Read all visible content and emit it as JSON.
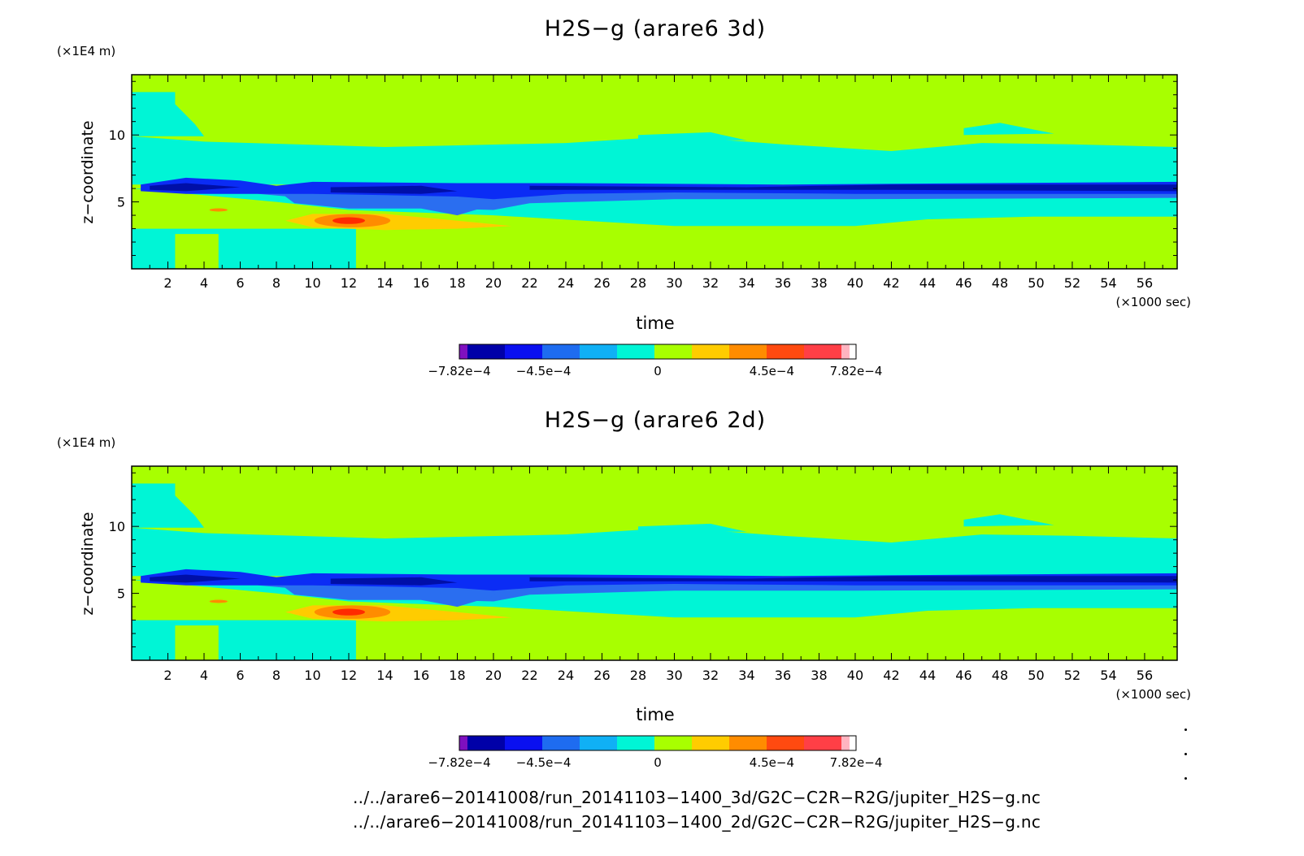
{
  "colors": {
    "levels": [
      "#7f10bf",
      "#0000a8",
      "#0a10f0",
      "#1e6cf0",
      "#10b0f5",
      "#00f5d6",
      "#a8ff00",
      "#ffcc00",
      "#ff8c00",
      "#ff4a10",
      "#ff3f46",
      "#ffb4c0"
    ],
    "band": {
      "deep": "#000fa8",
      "blue": "#0b2cf5",
      "mid": "#2a6ef0",
      "teal": "#00f5d6",
      "green": "#a8ff00",
      "yellow": "#ffcc00",
      "orange": "#ff8c00",
      "red": "#ff2a00"
    }
  },
  "chart_data": [
    {
      "type": "heatmap",
      "title": "H2S−g (arare6 3d)",
      "xlabel": "time",
      "x_unit": "(×1000 sec)",
      "ylabel": "z−coordinate",
      "y_unit": "(×1E4 m)",
      "xlim": [
        0,
        57.8
      ],
      "ylim": [
        0,
        14.5
      ],
      "xticks": [
        2,
        4,
        6,
        8,
        10,
        12,
        14,
        16,
        18,
        20,
        22,
        24,
        26,
        28,
        30,
        32,
        34,
        36,
        38,
        40,
        42,
        44,
        46,
        48,
        50,
        52,
        54,
        56
      ],
      "yticks": [
        5,
        10
      ],
      "colorbar": {
        "min": -0.000782,
        "max": 0.000782,
        "tick_labels": [
          "−7.82e−4",
          "−4.5e−4",
          "0",
          "4.5e−4",
          "7.82e−4"
        ],
        "tick_values": [
          -0.000782,
          -0.00045,
          0,
          0.00045,
          0.000782
        ]
      },
      "features": {
        "background_value": 0,
        "negative_band_z": [
          5.5,
          6.5
        ],
        "positive_max_time": 12,
        "positive_max_z": 3.6,
        "positive_max_value": 0.0007,
        "negative_min_value": -0.00075
      }
    },
    {
      "type": "heatmap",
      "title": "H2S−g (arare6 2d)",
      "xlabel": "time",
      "x_unit": "(×1000 sec)",
      "ylabel": "z−coordinate",
      "y_unit": "(×1E4 m)",
      "xlim": [
        0,
        57.8
      ],
      "ylim": [
        0,
        14.5
      ],
      "xticks": [
        2,
        4,
        6,
        8,
        10,
        12,
        14,
        16,
        18,
        20,
        22,
        24,
        26,
        28,
        30,
        32,
        34,
        36,
        38,
        40,
        42,
        44,
        46,
        48,
        50,
        52,
        54,
        56
      ],
      "yticks": [
        5,
        10
      ],
      "colorbar": {
        "min": -0.000782,
        "max": 0.000782,
        "tick_labels": [
          "−7.82e−4",
          "−4.5e−4",
          "0",
          "4.5e−4",
          "7.82e−4"
        ],
        "tick_values": [
          -0.000782,
          -0.00045,
          0,
          0.00045,
          0.000782
        ]
      },
      "features": {
        "background_value": 0,
        "negative_band_z": [
          5.5,
          6.5
        ],
        "positive_max_time": 12,
        "positive_max_z": 3.6,
        "positive_max_value": 0.0007,
        "negative_min_value": -0.00075
      }
    }
  ],
  "footer": {
    "file_3d": "../../arare6−20141008/run_20141103−1400_3d/G2C−C2R−R2G/jupiter_H2S−g.nc",
    "file_2d": "../../arare6−20141008/run_20141103−1400_2d/G2C−C2R−R2G/jupiter_H2S−g.nc"
  }
}
